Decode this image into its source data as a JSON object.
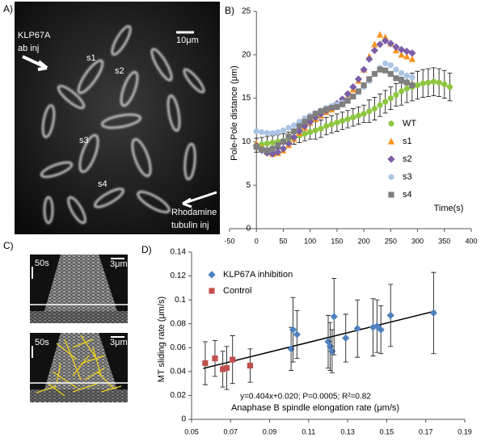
{
  "panels": {
    "a": {
      "label": "A)",
      "antibody": [
        "KLP67A",
        "ab inj"
      ],
      "scale": "10μm",
      "spindles": [
        "s1",
        "s2",
        "s3",
        "s4"
      ],
      "tubulin": [
        "Rhodamine",
        "tubulin inj"
      ]
    },
    "b": {
      "label": "B)"
    },
    "c": {
      "label": "C)",
      "top_time": "50s",
      "top_scale": "3μm",
      "bottom_time": "50s",
      "bottom_scale": "3μm"
    },
    "d": {
      "label": "D)"
    }
  },
  "chart_data": [
    {
      "type": "scatter",
      "x_label": "Time(s)",
      "y_label": "Pole-Pole distance (μm)",
      "xlim": [
        -50,
        400
      ],
      "xticks": [
        -50,
        0,
        50,
        100,
        150,
        200,
        250,
        300,
        350,
        400
      ],
      "ylim": [
        0,
        25
      ],
      "yticks": [
        0,
        5,
        10,
        15,
        20,
        25
      ],
      "grid": false,
      "legend": "right",
      "series": [
        {
          "name": "WT",
          "color": "#8dc63f",
          "marker": "circle",
          "x": [
            0,
            10,
            20,
            30,
            40,
            50,
            60,
            70,
            80,
            90,
            100,
            110,
            120,
            130,
            140,
            150,
            160,
            170,
            180,
            190,
            200,
            210,
            220,
            230,
            240,
            250,
            260,
            270,
            280,
            290,
            300,
            310,
            320,
            330,
            340,
            350,
            360
          ],
          "values": [
            9.6,
            9.7,
            9.8,
            9.9,
            10.0,
            10.1,
            10.3,
            10.5,
            10.7,
            10.9,
            11.1,
            11.3,
            11.5,
            11.8,
            12.0,
            12.2,
            12.4,
            12.6,
            12.8,
            13.0,
            13.2,
            13.5,
            13.8,
            14.2,
            14.6,
            15.0,
            15.4,
            15.8,
            16.1,
            16.3,
            16.5,
            16.7,
            16.8,
            16.9,
            16.8,
            16.6,
            16.3
          ],
          "errors": [
            0.8,
            0.8,
            0.8,
            0.8,
            0.8,
            0.8,
            0.8,
            0.8,
            0.8,
            0.8,
            0.8,
            1.0,
            1.0,
            1.0,
            1.0,
            1.0,
            1.0,
            1.0,
            1.0,
            1.0,
            1.0,
            1.3,
            1.3,
            1.3,
            1.3,
            1.3,
            1.3,
            1.6,
            1.6,
            1.6,
            1.6,
            1.6,
            1.6,
            1.6,
            1.6,
            1.6,
            1.6
          ]
        },
        {
          "name": "s1",
          "color": "#f7941d",
          "marker": "triangle",
          "x": [
            0,
            10,
            20,
            30,
            40,
            50,
            60,
            70,
            80,
            90,
            100,
            110,
            120,
            130,
            140,
            150,
            160,
            170,
            180,
            190,
            200,
            210,
            220,
            230,
            240,
            250,
            260,
            270,
            280,
            290
          ],
          "values": [
            9.8,
            9.3,
            8.8,
            8.6,
            8.7,
            9.0,
            9.6,
            10.3,
            11.0,
            11.6,
            12.2,
            12.6,
            13.0,
            13.4,
            13.7,
            14.0,
            14.5,
            15.2,
            16.0,
            17.0,
            18.3,
            19.8,
            21.2,
            22.3,
            22.0,
            21.3,
            20.5,
            20.0,
            19.8,
            19.5
          ]
        },
        {
          "name": "s2",
          "color": "#7b5ea7",
          "marker": "diamond",
          "x": [
            0,
            10,
            20,
            30,
            40,
            50,
            60,
            70,
            80,
            90,
            100,
            110,
            120,
            130,
            140,
            150,
            160,
            170,
            180,
            190,
            200,
            210,
            220,
            230,
            240,
            250,
            260,
            270,
            280,
            290
          ],
          "values": [
            9.5,
            9.0,
            8.7,
            8.6,
            8.8,
            9.2,
            9.8,
            10.5,
            11.2,
            11.8,
            12.3,
            12.8,
            13.2,
            13.6,
            14.0,
            14.4,
            14.9,
            15.5,
            16.3,
            17.2,
            18.3,
            19.5,
            20.5,
            21.2,
            21.6,
            21.3,
            20.9,
            20.6,
            20.4,
            20.2
          ]
        },
        {
          "name": "s3",
          "color": "#a9c4e4",
          "marker": "circle",
          "x": [
            0,
            10,
            20,
            30,
            40,
            50,
            60,
            70,
            80,
            90,
            100,
            110,
            120,
            130,
            140,
            150,
            160,
            170,
            180,
            190,
            200,
            210,
            220,
            230,
            240,
            250,
            260,
            270,
            280,
            290
          ],
          "values": [
            11.2,
            11.1,
            11.0,
            11.0,
            11.1,
            11.3,
            11.6,
            11.9,
            12.3,
            12.7,
            13.0,
            13.3,
            13.6,
            13.9,
            14.1,
            14.3,
            14.5,
            14.8,
            15.2,
            15.7,
            16.3,
            17.0,
            17.8,
            18.5,
            19.0,
            18.8,
            18.3,
            17.9,
            17.6,
            17.4
          ]
        },
        {
          "name": "s4",
          "color": "#7f7f7f",
          "marker": "square",
          "x": [
            0,
            10,
            20,
            30,
            40,
            50,
            60,
            70,
            80,
            90,
            100,
            110,
            120,
            130,
            140,
            150,
            160,
            170,
            180,
            190,
            200,
            210,
            220,
            230,
            240,
            250,
            260,
            270,
            280,
            290
          ],
          "values": [
            9.4,
            9.1,
            9.0,
            9.2,
            9.6,
            10.0,
            10.6,
            11.2,
            11.8,
            12.3,
            12.8,
            13.2,
            13.5,
            13.7,
            13.9,
            14.0,
            14.3,
            14.7,
            15.2,
            15.8,
            16.5,
            17.2,
            17.8,
            18.3,
            18.2,
            17.8,
            17.3,
            17.0,
            16.8,
            16.5
          ]
        }
      ]
    },
    {
      "type": "scatter",
      "x_label": "Anaphase B spindle elongation rate (μm/s)",
      "y_label": "MT sliding rate (μm/s)",
      "xlim": [
        0.05,
        0.19
      ],
      "xticks": [
        0.05,
        0.07,
        0.09,
        0.11,
        0.13,
        0.15,
        0.17,
        0.19
      ],
      "ylim": [
        0,
        0.14
      ],
      "yticks": [
        0,
        0.02,
        0.04,
        0.06,
        0.08,
        0.1,
        0.12,
        0.14
      ],
      "grid": false,
      "legend": "upper left",
      "annotation": "y=0.404x+0.020; P=0.0005; R²=0.82",
      "fit": {
        "slope": 0.404,
        "intercept": 0.02,
        "x": [
          0.056,
          0.175
        ],
        "color": "#000000"
      },
      "series": [
        {
          "name": "KLP67A inhibition",
          "color": "#4f81bd",
          "marker": "diamond",
          "x": [
            0.101,
            0.102,
            0.104,
            0.12,
            0.121,
            0.122,
            0.123,
            0.129,
            0.135,
            0.143,
            0.145,
            0.147,
            0.152,
            0.174
          ],
          "values": [
            0.059,
            0.075,
            0.071,
            0.065,
            0.061,
            0.057,
            0.086,
            0.068,
            0.076,
            0.077,
            0.078,
            0.075,
            0.087,
            0.089
          ],
          "errors": [
            0.018,
            0.027,
            0.02,
            0.022,
            0.02,
            0.018,
            0.032,
            0.02,
            0.024,
            0.024,
            0.022,
            0.02,
            0.026,
            0.034
          ]
        },
        {
          "name": "Control",
          "color": "#c0504d",
          "marker": "square",
          "x": [
            0.057,
            0.062,
            0.066,
            0.068,
            0.071,
            0.08
          ],
          "values": [
            0.047,
            0.051,
            0.042,
            0.043,
            0.05,
            0.045
          ],
          "errors": [
            0.018,
            0.015,
            0.015,
            0.018,
            0.02,
            0.014
          ]
        }
      ]
    }
  ]
}
